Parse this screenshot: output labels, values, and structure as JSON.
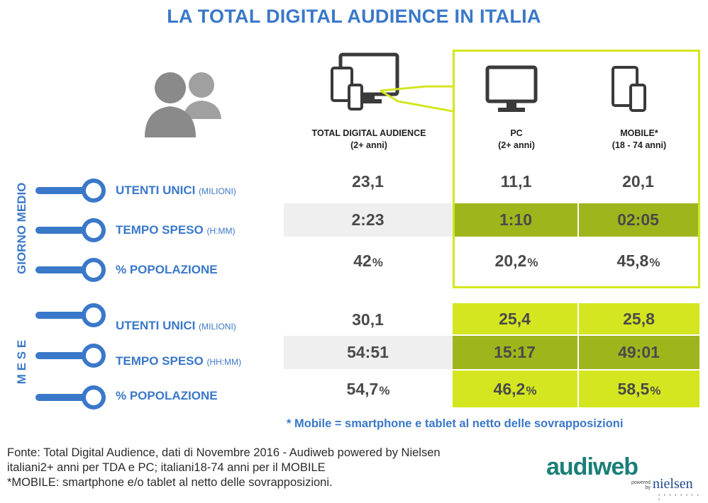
{
  "title": "LA TOTAL DIGITAL AUDIENCE IN ITALIA",
  "icons": {
    "people": "people-icon",
    "multi_device": "multi-device-icon",
    "pc": "desktop-monitor-icon",
    "mobile": "phone-tablet-icon"
  },
  "colors": {
    "blue": "#3a78c9",
    "lime": "#d4e620",
    "olive": "#9fb51c",
    "grey": "#efefef",
    "text": "#4a4a4a"
  },
  "columns": [
    {
      "title": "TOTAL DIGITAL AUDIENCE",
      "sub": "(2+ anni)"
    },
    {
      "title": "PC",
      "sub": "(2+ anni)"
    },
    {
      "title": "MOBILE*",
      "sub": "(18 - 74 anni)"
    }
  ],
  "sections": {
    "giorno": "GIORNO MEDIO",
    "mese": "M E S E"
  },
  "rows": [
    {
      "label": "UTENTI UNICI",
      "unit": "(MILIONI)",
      "values": [
        "23,1",
        "11,1",
        "20,1"
      ],
      "pct": [
        "",
        "",
        ""
      ]
    },
    {
      "label": "TEMPO SPESO",
      "unit": "(H:MM)",
      "values": [
        "2:23",
        "1:10",
        "02:05"
      ],
      "pct": [
        "",
        "",
        ""
      ]
    },
    {
      "label": "% POPOLAZIONE",
      "unit": "",
      "values": [
        "42",
        "20,2",
        "45,8"
      ],
      "pct": [
        "%",
        "%",
        "%"
      ]
    },
    {
      "label": "UTENTI UNICI",
      "unit": "(MILIONI)",
      "values": [
        "30,1",
        "25,4",
        "25,8"
      ],
      "pct": [
        "",
        "",
        ""
      ]
    },
    {
      "label": "TEMPO SPESO",
      "unit": "(HH:MM)",
      "values": [
        "54:51",
        "15:17",
        "49:01"
      ],
      "pct": [
        "",
        "",
        ""
      ]
    },
    {
      "label": "% POPOLAZIONE",
      "unit": "",
      "values": [
        "54,7",
        "46,2",
        "58,5"
      ],
      "pct": [
        "%",
        "%",
        "%"
      ]
    }
  ],
  "footnote": "* Mobile = smartphone e tablet al netto delle sovrapposizioni",
  "source": [
    "Fonte: Total Digital Audience, dati di Novembre 2016 - Audiweb powered by Nielsen",
    "italiani2+ anni per TDA e PC; italiani18-74 anni per il MOBILE",
    "*MOBILE: smartphone e/o tablet al netto delle sovrapposizioni."
  ],
  "logo": {
    "audiweb": "audiweb",
    "powered": "powered",
    "by": "by",
    "nielsen": "nielsen"
  }
}
